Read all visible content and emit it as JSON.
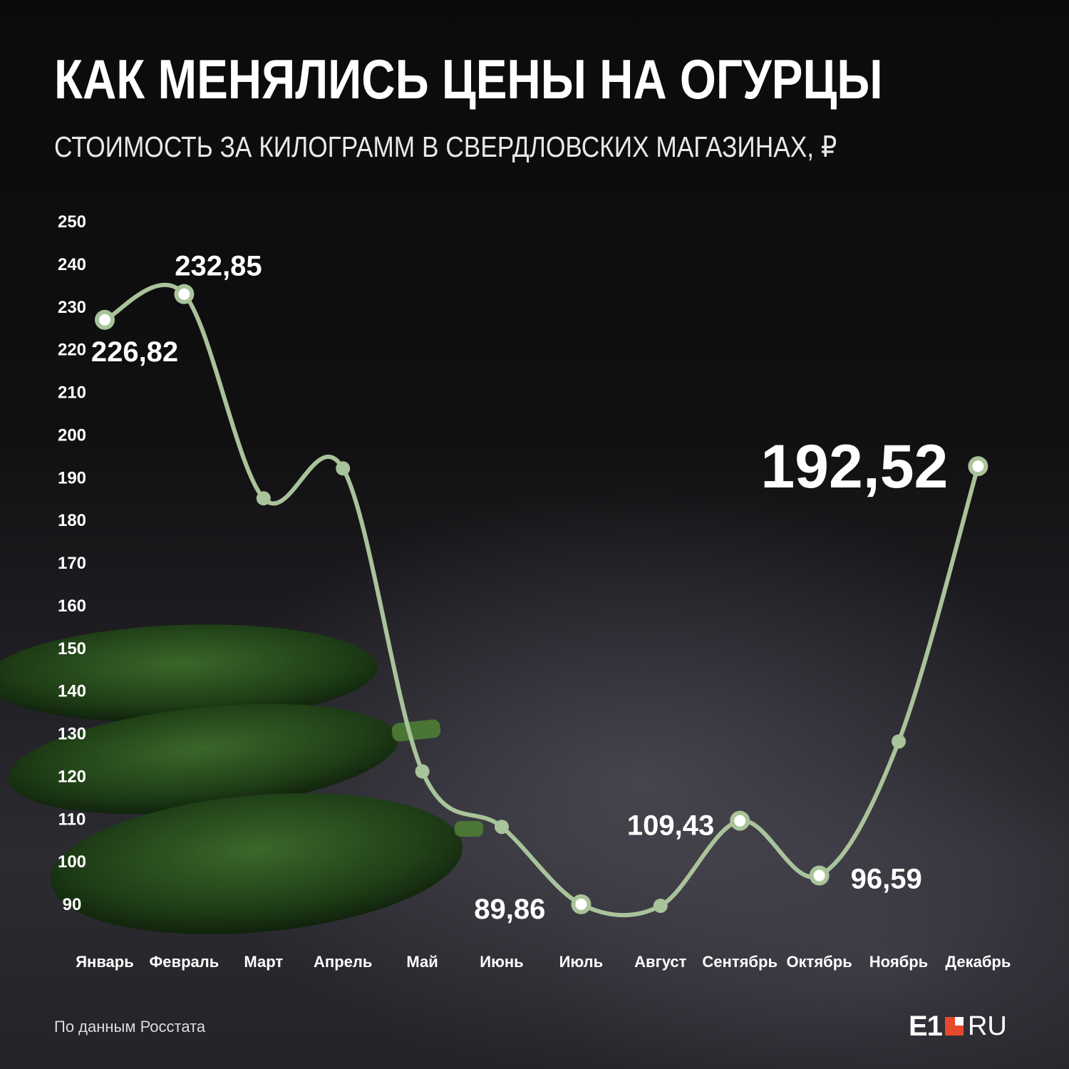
{
  "header": {
    "title": "КАК МЕНЯЛИСЬ ЦЕНЫ НА ОГУРЦЫ",
    "subtitle": "СТОИМОСТЬ ЗА КИЛОГРАММ В СВЕРДЛОВСКИХ МАГАЗИНАХ, ₽"
  },
  "footer": {
    "source": "По данным Росстата",
    "logo_main": "E1",
    "logo_suffix": "RU"
  },
  "colors": {
    "line": "#a9c39a",
    "marker_fill": "#ffffff",
    "logo_accent": "#e8492b"
  },
  "chart_data": {
    "type": "line",
    "title": "КАК МЕНЯЛИСЬ ЦЕНЫ НА ОГУРЦЫ",
    "subtitle": "СТОИМОСТЬ ЗА КИЛОГРАММ В СВЕРДЛОВСКИХ МАГАЗИНАХ, ₽",
    "categories": [
      "Январь",
      "Февраль",
      "Март",
      "Апрель",
      "Май",
      "Июнь",
      "Июль",
      "Август",
      "Сентябрь",
      "Октябрь",
      "Ноябрь",
      "Декабрь"
    ],
    "values": [
      226.82,
      232.85,
      185,
      192,
      121,
      108,
      89.86,
      89.5,
      109.43,
      96.59,
      128,
      192.52
    ],
    "labels": [
      "226,82",
      "232,85",
      "",
      "",
      "",
      "",
      "89,86",
      "",
      "109,43",
      "96,59",
      "",
      "192,52"
    ],
    "ylim": [
      90,
      250
    ],
    "yticks": [
      250,
      240,
      230,
      220,
      210,
      200,
      190,
      180,
      170,
      160,
      150,
      140,
      130,
      120,
      110,
      100,
      90
    ],
    "grid": false,
    "smooth": true
  }
}
